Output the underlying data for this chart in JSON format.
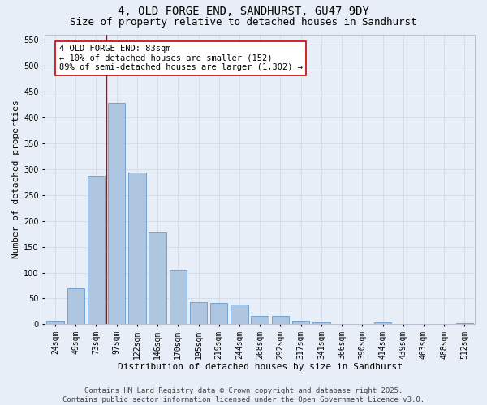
{
  "title": "4, OLD FORGE END, SANDHURST, GU47 9DY",
  "subtitle": "Size of property relative to detached houses in Sandhurst",
  "xlabel": "Distribution of detached houses by size in Sandhurst",
  "ylabel": "Number of detached properties",
  "footer_line1": "Contains HM Land Registry data © Crown copyright and database right 2025.",
  "footer_line2": "Contains public sector information licensed under the Open Government Licence v3.0.",
  "categories": [
    "24sqm",
    "49sqm",
    "73sqm",
    "97sqm",
    "122sqm",
    "146sqm",
    "170sqm",
    "195sqm",
    "219sqm",
    "244sqm",
    "268sqm",
    "292sqm",
    "317sqm",
    "341sqm",
    "366sqm",
    "390sqm",
    "414sqm",
    "439sqm",
    "463sqm",
    "488sqm",
    "512sqm"
  ],
  "values": [
    7,
    70,
    287,
    428,
    293,
    177,
    105,
    43,
    41,
    38,
    17,
    17,
    7,
    4,
    0,
    0,
    4,
    0,
    0,
    0,
    2
  ],
  "bar_color": "#aec6df",
  "bar_edge_color": "#6699cc",
  "grid_color": "#d0daea",
  "background_color": "#e8eef8",
  "annotation_line1": "4 OLD FORGE END: 83sqm",
  "annotation_line2": "← 10% of detached houses are smaller (152)",
  "annotation_line3": "89% of semi-detached houses are larger (1,302) →",
  "annotation_box_color": "#ffffff",
  "annotation_box_edge_color": "#cc0000",
  "vline_color": "#cc0000",
  "vline_x_index": 2.5,
  "ylim": [
    0,
    560
  ],
  "yticks": [
    0,
    50,
    100,
    150,
    200,
    250,
    300,
    350,
    400,
    450,
    500,
    550
  ],
  "title_fontsize": 10,
  "subtitle_fontsize": 9,
  "axis_label_fontsize": 8,
  "tick_fontsize": 7,
  "annotation_fontsize": 7.5,
  "footer_fontsize": 6.5
}
